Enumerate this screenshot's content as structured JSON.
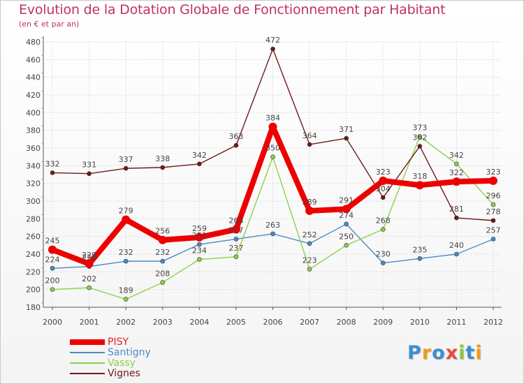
{
  "title": "Evolution de la Dotation Globale de Fonctionnement par Habitant",
  "subtitle": "(en € et par an)",
  "logo": {
    "text": "Proxiti",
    "letters": [
      "P",
      "r",
      "o",
      "x",
      "i",
      "t",
      "i"
    ],
    "colors": [
      "#3a8fd0",
      "#f39c12",
      "#3a8fd0",
      "#e74c3c",
      "#8dc63f",
      "#3a8fd0",
      "#f39c12"
    ]
  },
  "chart_data": {
    "type": "line",
    "title": "Evolution de la Dotation Globale de Fonctionnement par Habitant",
    "subtitle": "(en € et par an)",
    "x": [
      "2000",
      "2001",
      "2002",
      "2003",
      "2004",
      "2005",
      "2006",
      "2007",
      "2008",
      "2009",
      "2010",
      "2011",
      "2012"
    ],
    "ylim": [
      180,
      480
    ],
    "yticks": [
      180,
      200,
      220,
      240,
      260,
      280,
      300,
      320,
      340,
      360,
      380,
      400,
      420,
      440,
      460,
      480
    ],
    "grid": true,
    "legend_position": "bottom-left",
    "series": [
      {
        "name": "PISY",
        "color": "#ee0000",
        "values": [
          245,
          229,
          279,
          256,
          259,
          268,
          384,
          289,
          291,
          323,
          318,
          322,
          323
        ]
      },
      {
        "name": "Santigny",
        "color": "#4a8bc4",
        "values": [
          224,
          226,
          232,
          232,
          251,
          257,
          263,
          252,
          274,
          230,
          235,
          240,
          257
        ]
      },
      {
        "name": "Vassy",
        "color": "#8bd14b",
        "values": [
          200,
          202,
          189,
          208,
          234,
          237,
          350,
          223,
          250,
          268,
          373,
          342,
          296
        ]
      },
      {
        "name": "Vignes",
        "color": "#6e1a1a",
        "values": [
          332,
          331,
          337,
          338,
          342,
          363,
          472,
          364,
          371,
          304,
          362,
          281,
          278
        ]
      }
    ]
  }
}
